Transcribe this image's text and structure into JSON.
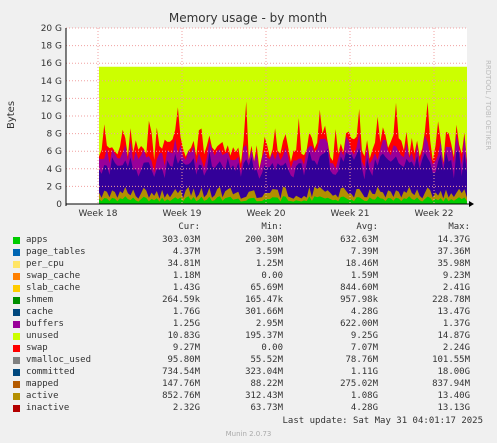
{
  "chart_data": {
    "type": "area",
    "title": "Memory usage - by month",
    "ylabel": "Bytes",
    "ylim": [
      0,
      20
    ],
    "yunit": "G",
    "yticks": [
      "0",
      "2 G",
      "4 G",
      "6 G",
      "8 G",
      "10 G",
      "12 G",
      "14 G",
      "16 G",
      "18 G",
      "20 G"
    ],
    "xticks": [
      "Week 18",
      "Week 19",
      "Week 20",
      "Week 21",
      "Week 22"
    ],
    "grid": true,
    "side_label": "RRDTOOL / TOBI OETIKER",
    "approx_total_G": 15.6,
    "series": [
      {
        "name": "apps",
        "color": "#00cc00"
      },
      {
        "name": "page_tables",
        "color": "#0066b3"
      },
      {
        "name": "per_cpu",
        "color": "#ff8000"
      },
      {
        "name": "swap_cache",
        "color": "#ffcc00"
      },
      {
        "name": "slab_cache",
        "color": "#330099"
      },
      {
        "name": "shmem",
        "color": "#990099"
      },
      {
        "name": "cache",
        "color": "#ccff00"
      },
      {
        "name": "buffers",
        "color": "#ff0000"
      },
      {
        "name": "unused",
        "color": "#808080"
      },
      {
        "name": "swap",
        "color": "#008f00"
      },
      {
        "name": "vmalloc_used",
        "color": "#00487d"
      },
      {
        "name": "committed",
        "color": "#b35a00"
      },
      {
        "name": "mapped",
        "color": "#b38f00"
      },
      {
        "name": "active",
        "color": "#6b006b"
      },
      {
        "name": "inactive",
        "color": "#8fb300"
      }
    ]
  },
  "legend": {
    "headers": {
      "cur": "Cur:",
      "min": "Min:",
      "avg": "Avg:",
      "max": "Max:"
    },
    "rows": [
      {
        "name": "apps",
        "color": "#00cc00",
        "cur": "303.03M",
        "min": "200.30M",
        "avg": "632.63M",
        "max": "14.37G"
      },
      {
        "name": "page_tables",
        "color": "#0066b3",
        "cur": "4.37M",
        "min": "3.59M",
        "avg": "7.39M",
        "max": "37.36M"
      },
      {
        "name": "per_cpu",
        "color": "#ffe566",
        "cur": "34.81M",
        "min": "1.25M",
        "avg": "18.46M",
        "max": "35.98M"
      },
      {
        "name": "swap_cache",
        "color": "#ff8000",
        "cur": "1.18M",
        "min": "0.00",
        "avg": "1.59M",
        "max": "9.23M"
      },
      {
        "name": "slab_cache",
        "color": "#ffcc00",
        "cur": "1.43G",
        "min": "65.69M",
        "avg": "844.60M",
        "max": "2.41G"
      },
      {
        "name": "shmem",
        "color": "#008f00",
        "cur": "264.59k",
        "min": "165.47k",
        "avg": "957.98k",
        "max": "228.78M"
      },
      {
        "name": "cache",
        "color": "#00487d",
        "cur": "1.76G",
        "min": "301.66M",
        "avg": "4.28G",
        "max": "13.47G"
      },
      {
        "name": "buffers",
        "color": "#990099",
        "cur": "1.25G",
        "min": "2.95M",
        "avg": "622.00M",
        "max": "1.37G"
      },
      {
        "name": "unused",
        "color": "#ccff00",
        "cur": "10.83G",
        "min": "195.37M",
        "avg": "9.25G",
        "max": "14.87G"
      },
      {
        "name": "swap",
        "color": "#ff0000",
        "cur": "9.27M",
        "min": "0.00",
        "avg": "7.07M",
        "max": "2.24G"
      },
      {
        "name": "vmalloc_used",
        "color": "#808080",
        "cur": "95.80M",
        "min": "55.52M",
        "avg": "78.76M",
        "max": "101.55M"
      },
      {
        "name": "committed",
        "color": "#00487d",
        "cur": "734.54M",
        "min": "323.04M",
        "avg": "1.11G",
        "max": "18.00G"
      },
      {
        "name": "mapped",
        "color": "#b35a00",
        "cur": "147.76M",
        "min": "88.22M",
        "avg": "275.02M",
        "max": "837.94M"
      },
      {
        "name": "active",
        "color": "#b38f00",
        "cur": "852.76M",
        "min": "312.43M",
        "avg": "1.08G",
        "max": "13.40G"
      },
      {
        "name": "inactive",
        "color": "#b30000",
        "cur": "2.32G",
        "min": "63.73M",
        "avg": "4.28G",
        "max": "13.13G"
      }
    ]
  },
  "footer": {
    "last_update": "Last update: Sat May 31 04:01:17 2025",
    "version": "Munin 2.0.73"
  }
}
